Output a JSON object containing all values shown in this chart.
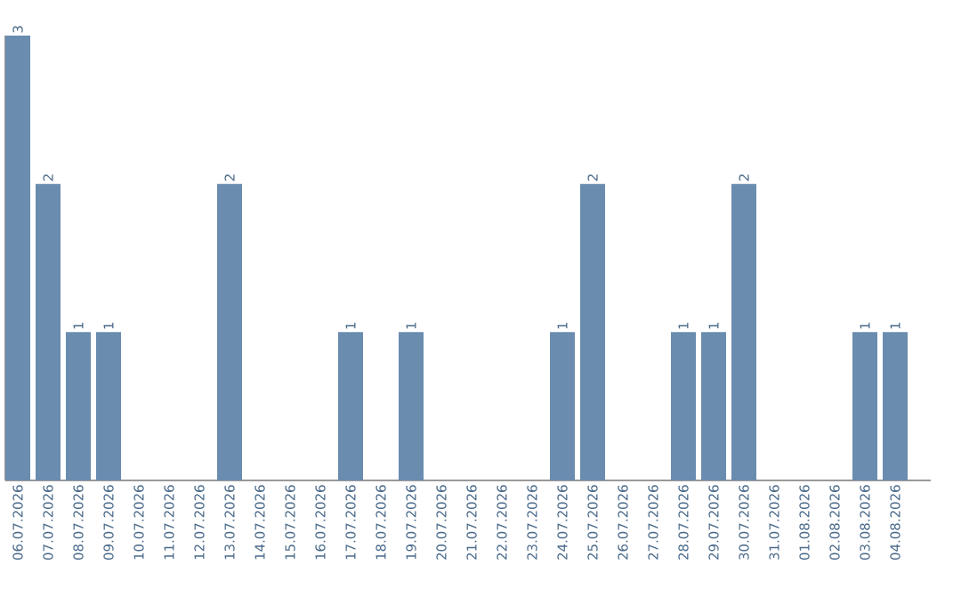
{
  "chart_data": {
    "type": "bar",
    "categories": [
      "06.07.2026",
      "07.07.2026",
      "08.07.2026",
      "09.07.2026",
      "10.07.2026",
      "11.07.2026",
      "12.07.2026",
      "13.07.2026",
      "14.07.2026",
      "15.07.2026",
      "16.07.2026",
      "17.07.2026",
      "18.07.2026",
      "19.07.2026",
      "20.07.2026",
      "21.07.2026",
      "22.07.2026",
      "23.07.2026",
      "24.07.2026",
      "25.07.2026",
      "26.07.2026",
      "27.07.2026",
      "28.07.2026",
      "29.07.2026",
      "30.07.2026",
      "31.07.2026",
      "01.08.2026",
      "02.08.2026",
      "03.08.2026",
      "04.08.2026"
    ],
    "values": [
      3,
      2,
      1,
      1,
      0,
      0,
      0,
      2,
      0,
      0,
      0,
      1,
      0,
      1,
      0,
      0,
      0,
      0,
      1,
      2,
      0,
      0,
      1,
      1,
      2,
      0,
      0,
      0,
      1,
      1
    ],
    "value_labels": [
      "3",
      "2",
      "1",
      "1",
      null,
      null,
      null,
      "2",
      null,
      null,
      null,
      "1",
      null,
      "1",
      null,
      null,
      null,
      null,
      "1",
      "2",
      null,
      null,
      "1",
      "1",
      "2",
      null,
      null,
      null,
      "1",
      "1"
    ],
    "color": "#6a8caf",
    "tick_labels": "x",
    "grid": false
  }
}
